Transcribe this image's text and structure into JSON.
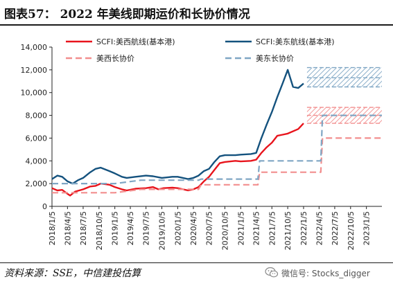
{
  "header": {
    "title": "图表57：  2022 年美线即期运价和长协价情况"
  },
  "footer": {
    "source": "资料来源：SSE，中信建投估算"
  },
  "watermark": {
    "text": "微信号: Stocks_digger",
    "icon": "wechat-icon"
  },
  "colors": {
    "west_spot": "#e8141c",
    "east_spot": "#14527e",
    "west_contract": "#f28e8e",
    "east_contract": "#7fa6c4"
  },
  "chart_data": {
    "type": "line",
    "title": "2022 年美线即期运价和长协价情况",
    "xlabel": "",
    "ylabel": "",
    "ylim": [
      0,
      14000
    ],
    "yticks": [
      0,
      2000,
      4000,
      6000,
      8000,
      10000,
      12000,
      14000
    ],
    "ytick_labels": [
      "0",
      "2,000",
      "4,000",
      "6,000",
      "8,000",
      "10,000",
      "12,000",
      "14,000"
    ],
    "xlim": [
      "2018-01-05",
      "2023-04-05"
    ],
    "xticks": [
      "2018/1/5",
      "2018/4/5",
      "2018/7/5",
      "2018/10/5",
      "2019/1/5",
      "2019/4/5",
      "2019/7/5",
      "2019/10/5",
      "2020/1/5",
      "2020/4/5",
      "2020/7/5",
      "2020/10/5",
      "2021/1/5",
      "2021/4/5",
      "2021/7/5",
      "2021/10/5",
      "2022/1/5",
      "2022/4/5",
      "2022/7/5",
      "2022/10/5",
      "2023/1/5"
    ],
    "grid": false,
    "legend_position": "top",
    "legend": [
      {
        "label": "SCFI:美西航线(基本港)",
        "series": "west_spot",
        "style": "solid"
      },
      {
        "label": "SCFI:美东航线(基本港)",
        "series": "east_spot",
        "style": "solid"
      },
      {
        "label": "美西长协价",
        "series": "west_contract",
        "style": "dashed"
      },
      {
        "label": "美东长协价",
        "series": "east_contract",
        "style": "dashed"
      }
    ],
    "series": [
      {
        "name": "SCFI:美西航线(基本港)",
        "key": "west_spot",
        "style": "solid",
        "points": [
          [
            "2018-01-05",
            1600
          ],
          [
            "2018-02-05",
            1400
          ],
          [
            "2018-03-05",
            1450
          ],
          [
            "2018-04-05",
            1100
          ],
          [
            "2018-04-20",
            950
          ],
          [
            "2018-05-20",
            1300
          ],
          [
            "2018-07-05",
            1500
          ],
          [
            "2018-08-15",
            1750
          ],
          [
            "2018-09-15",
            1800
          ],
          [
            "2018-10-15",
            2000
          ],
          [
            "2018-12-05",
            1900
          ],
          [
            "2019-01-05",
            1700
          ],
          [
            "2019-02-15",
            1500
          ],
          [
            "2019-03-15",
            1400
          ],
          [
            "2019-05-05",
            1550
          ],
          [
            "2019-07-05",
            1600
          ],
          [
            "2019-08-15",
            1700
          ],
          [
            "2019-09-15",
            1500
          ],
          [
            "2019-10-15",
            1600
          ],
          [
            "2019-12-05",
            1650
          ],
          [
            "2020-01-05",
            1600
          ],
          [
            "2020-03-05",
            1400
          ],
          [
            "2020-04-05",
            1500
          ],
          [
            "2020-05-05",
            1700
          ],
          [
            "2020-06-05",
            2200
          ],
          [
            "2020-07-05",
            2600
          ],
          [
            "2020-08-05",
            3200
          ],
          [
            "2020-09-05",
            3800
          ],
          [
            "2020-10-05",
            3900
          ],
          [
            "2020-12-05",
            4000
          ],
          [
            "2021-01-05",
            3950
          ],
          [
            "2021-03-05",
            4000
          ],
          [
            "2021-04-05",
            4100
          ],
          [
            "2021-05-05",
            4700
          ],
          [
            "2021-06-05",
            5200
          ],
          [
            "2021-07-05",
            5600
          ],
          [
            "2021-08-05",
            6200
          ],
          [
            "2021-09-05",
            6300
          ],
          [
            "2021-10-05",
            6400
          ],
          [
            "2021-12-05",
            6800
          ],
          [
            "2022-01-05",
            7300
          ]
        ]
      },
      {
        "name": "SCFI:美东航线(基本港)",
        "key": "east_spot",
        "style": "solid",
        "points": [
          [
            "2018-01-05",
            2400
          ],
          [
            "2018-02-05",
            2700
          ],
          [
            "2018-03-05",
            2600
          ],
          [
            "2018-04-05",
            2200
          ],
          [
            "2018-05-05",
            2000
          ],
          [
            "2018-06-05",
            2300
          ],
          [
            "2018-07-05",
            2500
          ],
          [
            "2018-08-15",
            3000
          ],
          [
            "2018-09-15",
            3300
          ],
          [
            "2018-10-15",
            3400
          ],
          [
            "2018-12-05",
            3100
          ],
          [
            "2019-01-05",
            2900
          ],
          [
            "2019-02-15",
            2600
          ],
          [
            "2019-03-15",
            2500
          ],
          [
            "2019-05-05",
            2600
          ],
          [
            "2019-07-05",
            2700
          ],
          [
            "2019-08-15",
            2650
          ],
          [
            "2019-10-05",
            2500
          ],
          [
            "2019-12-05",
            2600
          ],
          [
            "2020-01-05",
            2600
          ],
          [
            "2020-03-05",
            2400
          ],
          [
            "2020-04-05",
            2500
          ],
          [
            "2020-05-05",
            2700
          ],
          [
            "2020-06-05",
            3100
          ],
          [
            "2020-07-05",
            3300
          ],
          [
            "2020-08-05",
            3900
          ],
          [
            "2020-09-05",
            4400
          ],
          [
            "2020-10-05",
            4500
          ],
          [
            "2020-12-05",
            4500
          ],
          [
            "2021-01-05",
            4550
          ],
          [
            "2021-03-05",
            4600
          ],
          [
            "2021-04-05",
            4700
          ],
          [
            "2021-05-05",
            6000
          ],
          [
            "2021-06-05",
            7200
          ],
          [
            "2021-07-05",
            8300
          ],
          [
            "2021-08-05",
            9600
          ],
          [
            "2021-09-05",
            10800
          ],
          [
            "2021-10-05",
            12000
          ],
          [
            "2021-11-05",
            10500
          ],
          [
            "2021-12-05",
            10400
          ],
          [
            "2022-01-05",
            10800
          ]
        ]
      },
      {
        "name": "美西长协价",
        "key": "west_contract",
        "style": "dashed",
        "points": [
          [
            "2018-01-05",
            1200
          ],
          [
            "2019-01-05",
            1200
          ],
          [
            "2019-06-05",
            1500
          ],
          [
            "2020-05-05",
            1500
          ],
          [
            "2020-05-20",
            1900
          ],
          [
            "2021-04-15",
            1900
          ],
          [
            "2021-04-25",
            3000
          ],
          [
            "2022-04-15",
            3000
          ],
          [
            "2022-04-25",
            6000
          ],
          [
            "2023-04-05",
            6000
          ]
        ]
      },
      {
        "name": "美东长协价",
        "key": "east_contract",
        "style": "dashed",
        "points": [
          [
            "2018-01-05",
            2000
          ],
          [
            "2019-01-05",
            2000
          ],
          [
            "2019-06-05",
            2300
          ],
          [
            "2020-05-05",
            2300
          ],
          [
            "2020-05-20",
            2400
          ],
          [
            "2021-04-15",
            2400
          ],
          [
            "2021-04-25",
            4000
          ],
          [
            "2022-04-15",
            4000
          ],
          [
            "2022-04-25",
            8000
          ],
          [
            "2023-04-05",
            8000
          ]
        ]
      }
    ],
    "forecast_bands": [
      {
        "series": "east_spot",
        "levels": [
          10500,
          11300,
          12200
        ]
      },
      {
        "series": "west_spot",
        "levels": [
          7300,
          8000,
          8700
        ]
      }
    ]
  }
}
